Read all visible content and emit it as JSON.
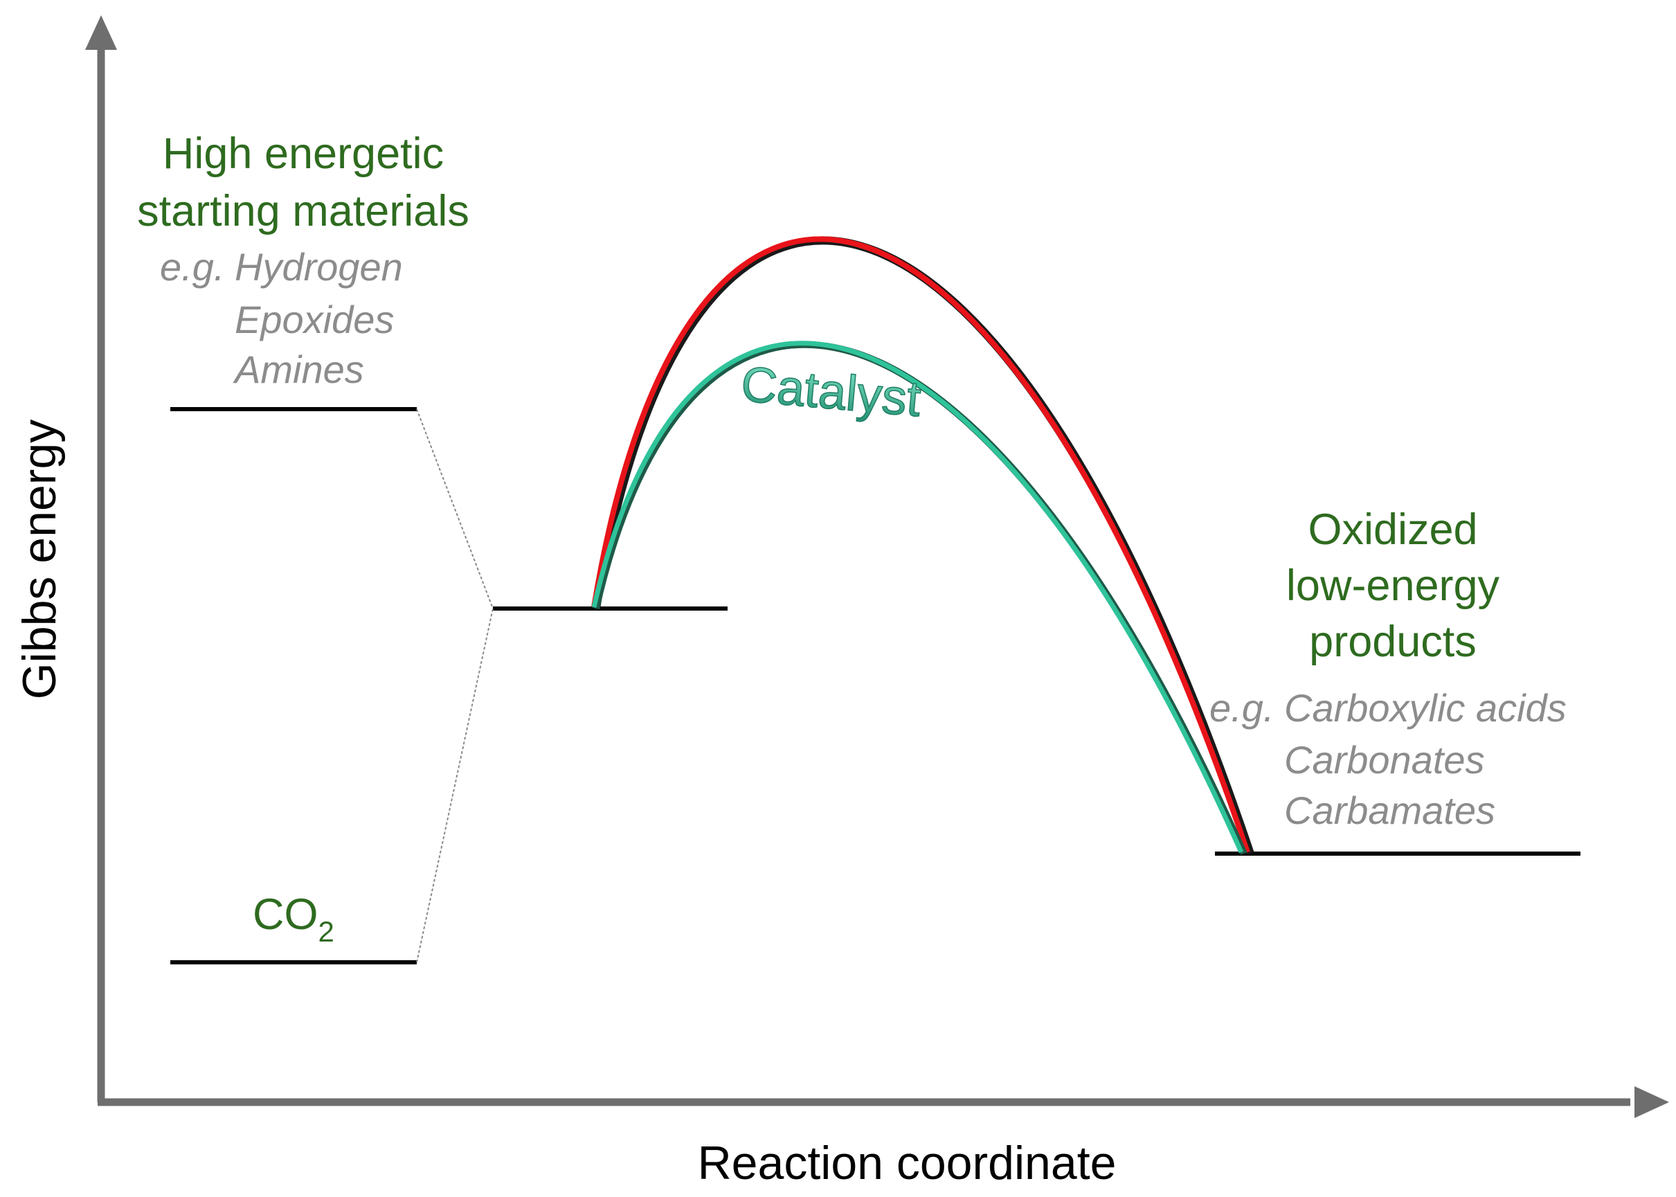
{
  "axes": {
    "y_label": "Gibbs energy",
    "x_label": "Reaction coordinate"
  },
  "starting": {
    "title_line1": "High energetic",
    "title_line2": "starting materials",
    "eg": "e.g.",
    "examples": [
      "Hydrogen",
      "Epoxides",
      "Amines"
    ]
  },
  "co2": {
    "main": "CO",
    "subscript": "2"
  },
  "products": {
    "title_line1": "Oxidized",
    "title_line2": "low-energy",
    "title_line3": "products",
    "eg": "e.g.",
    "examples": [
      "Carboxylic acids",
      "Carbonates",
      "Carbamates"
    ]
  },
  "catalyst_label": "Catalyst",
  "colors": {
    "label_green": "#2e6b1f",
    "example_grey": "#8c8c8c",
    "uncatalyzed_curve": "#e8141a",
    "catalyzed_curve": "#2fc39a",
    "axis": "#6e6e6e"
  }
}
